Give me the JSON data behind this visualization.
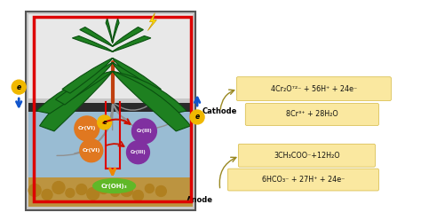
{
  "white_bg": "#ffffff",
  "tank_fill": "#c8c8c8",
  "tank_border": "#555555",
  "water_color": "#8ab8d8",
  "membrane_color": "#2a2a2a",
  "soil_color": "#c09030",
  "soil_bubble_color": "#b08020",
  "water_alpha": 0.75,
  "red_box_color": "#dd0000",
  "leaf_color": "#1e8020",
  "leaf_edge_color": "#0a5010",
  "stem_color": "#c04010",
  "root_color": "#888888",
  "lightning_color": "#ffe000",
  "eq_bg": "#fae8a0",
  "eq_edge": "#d4b840",
  "arrow_blue": "#1155cc",
  "arrow_red": "#cc1100",
  "arrow_orange": "#ee8800",
  "electron_bg": "#f0b800",
  "cr_vi_color": "#e07820",
  "cr_iii_color": "#8030a0",
  "cr_oh_color": "#60b828",
  "text_color": "#111111",
  "label_cathode": "Cathode",
  "label_anode": "Anode",
  "eq1": "4Cr₂O⁷²⁻ + 56H⁺ + 24e⁻",
  "eq2": "8Cr³⁺ + 28H₂O",
  "eq3": "3CH₃COO⁻+12H₂O",
  "eq4": "6HCO₃⁻ + 27H⁺ + 24e⁻"
}
